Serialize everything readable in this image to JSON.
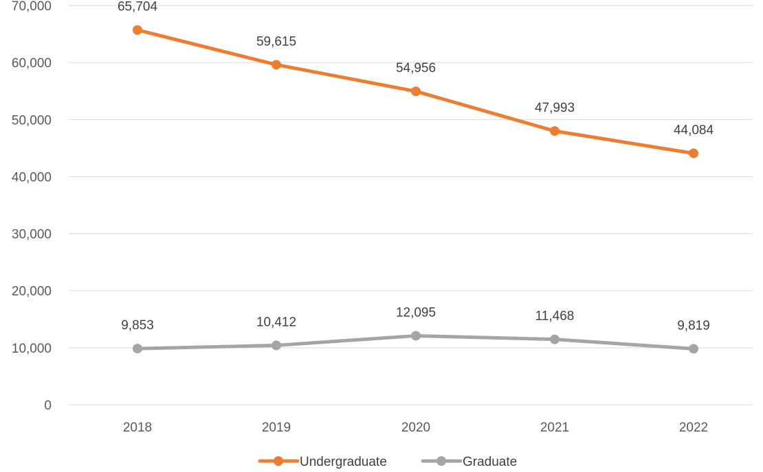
{
  "chart_data": {
    "type": "line",
    "title": "",
    "xlabel": "",
    "ylabel": "",
    "categories": [
      "2018",
      "2019",
      "2020",
      "2021",
      "2022"
    ],
    "ylim": [
      0,
      70000
    ],
    "yticks": [
      0,
      10000,
      20000,
      30000,
      40000,
      50000,
      60000,
      70000
    ],
    "ytick_labels": [
      "0",
      "10,000",
      "20,000",
      "30,000",
      "40,000",
      "50,000",
      "60,000",
      "70,000"
    ],
    "grid": true,
    "legend_position": "bottom",
    "series": [
      {
        "name": "Undergraduate",
        "color": "#ed7d31",
        "values": [
          65704,
          59615,
          54956,
          47993,
          44084
        ],
        "labels": [
          "65,704",
          "59,615",
          "54,956",
          "47,993",
          "44,084"
        ]
      },
      {
        "name": "Graduate",
        "color": "#a5a5a5",
        "values": [
          9853,
          10412,
          12095,
          11468,
          9819
        ],
        "labels": [
          "9,853",
          "10,412",
          "12,095",
          "11,468",
          "9,819"
        ]
      }
    ]
  }
}
